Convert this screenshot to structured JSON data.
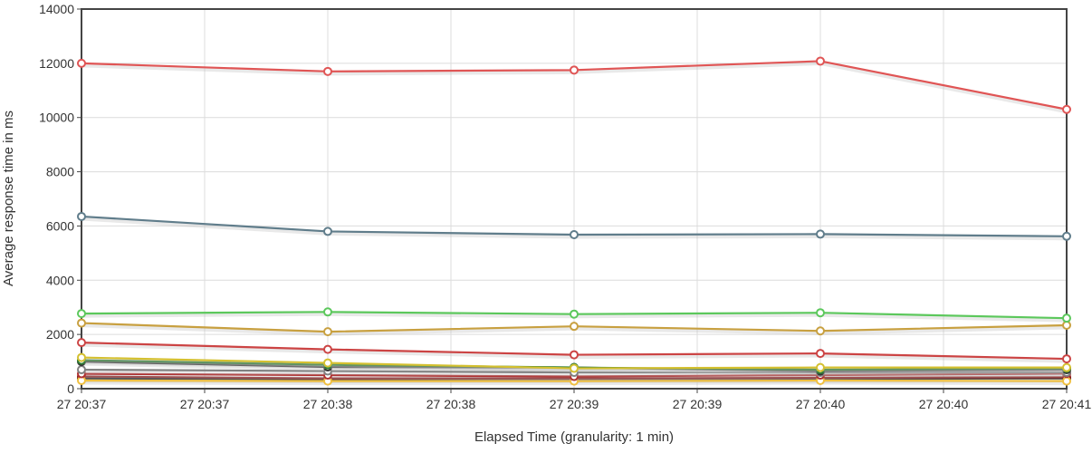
{
  "chart_data": {
    "type": "line",
    "title": "",
    "xlabel": "Elapsed Time (granularity: 1 min)",
    "ylabel": "Average response time in ms",
    "ylim": [
      0,
      14000
    ],
    "y_ticks": [
      0,
      2000,
      4000,
      6000,
      8000,
      10000,
      12000,
      14000
    ],
    "x_tick_labels": [
      "27 20:37",
      "27 20:37",
      "27 20:38",
      "27 20:38",
      "27 20:39",
      "27 20:39",
      "27 20:40",
      "27 20:40",
      "27 20:41"
    ],
    "x_points": [
      "27 20:37",
      "27 20:38",
      "27 20:39",
      "27 20:40",
      "27 20:41"
    ],
    "grid": true,
    "legend": "none",
    "series": [
      {
        "color": "#e05555",
        "values": [
          12000,
          11700,
          11750,
          12080,
          10300
        ]
      },
      {
        "color": "#607d8b",
        "values": [
          6350,
          5800,
          5680,
          5700,
          5620
        ]
      },
      {
        "color": "#5cc85c",
        "values": [
          2770,
          2830,
          2750,
          2800,
          2600
        ]
      },
      {
        "color": "#c8a040",
        "values": [
          2420,
          2100,
          2300,
          2130,
          2340
        ]
      },
      {
        "color": "#cc4444",
        "values": [
          1700,
          1450,
          1250,
          1300,
          1100
        ]
      },
      {
        "color": "#d4c030",
        "values": [
          1150,
          950,
          750,
          780,
          780
        ]
      },
      {
        "color": "#2e7d32",
        "values": [
          1050,
          880,
          780,
          700,
          750
        ]
      },
      {
        "color": "#333333",
        "values": [
          1000,
          800,
          780,
          650,
          700
        ]
      },
      {
        "color": "#808080",
        "values": [
          700,
          650,
          600,
          600,
          600
        ]
      },
      {
        "color": "#b03030",
        "values": [
          550,
          500,
          450,
          500,
          560
        ]
      },
      {
        "color": "#f0c040",
        "values": [
          300,
          280,
          280,
          300,
          280
        ]
      },
      {
        "color": "#8b1a1a",
        "values": [
          450,
          380,
          380,
          400,
          420
        ]
      },
      {
        "color": "#111111",
        "values": [
          380,
          350,
          360,
          360,
          380
        ]
      }
    ]
  }
}
